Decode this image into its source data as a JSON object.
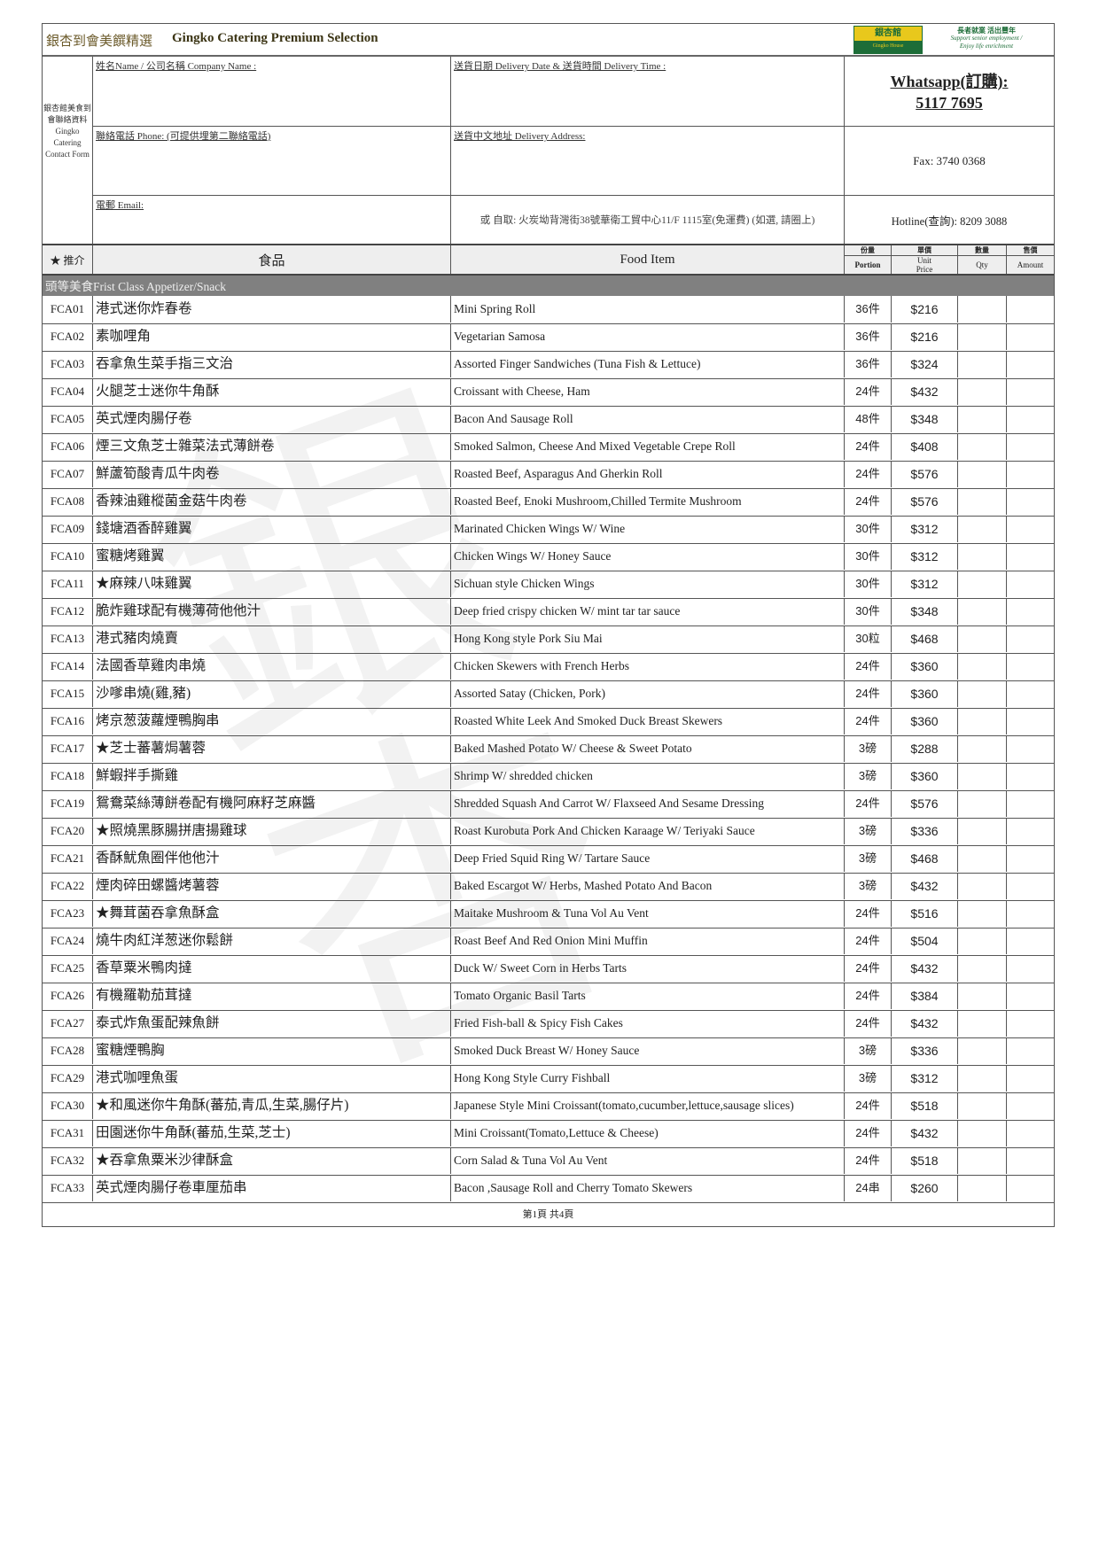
{
  "header": {
    "title_zh": "銀杏到會美饌精選",
    "title_en": "Gingko Catering Premium Selection",
    "logo_text": "銀杏館",
    "logo_subtext": "Gingko House",
    "slogan_zh": "長者就業 活出豐年",
    "slogan_en": "Support senior employment / Enjoy life enrichment"
  },
  "contact_form": {
    "side_label": "銀杏館美食到會聯絡資料 Gingko Catering Contact Form",
    "name_label": "姓名Name / 公司名稱 Company Name :",
    "delivery_date_label": "送貨日期 Delivery Date & 送貨時間  Delivery Time :",
    "whatsapp_label": "Whatsapp(訂購):",
    "whatsapp_number": "5117 7695",
    "phone_label": "聯絡電話 Phone: (可提供埋第二聯絡電話)",
    "address_label": "送貨中文地址 Delivery Address:",
    "fax": "Fax: 3740 0368",
    "email_label": "電郵 Email:",
    "pickup_note": "或 自取: 火炭坳背灣街38號華衛工貿中心11/F 1115室(免運費) (如選, 請圈上)",
    "hotline": "Hotline(查詢): 8209 3088"
  },
  "columns": {
    "recommend": "★ 推介",
    "food_zh": "食品",
    "food_en": "Food Item",
    "portion_zh": "份量",
    "portion_en": "Portion",
    "price_zh": "單價",
    "price_en": "Unit Price",
    "qty_zh": "數量",
    "qty_en": "Qty",
    "amount_zh": "售價",
    "amount_en": "Amount"
  },
  "category": "頭等美食Frist Class Appetizer/Snack",
  "items": [
    {
      "code": "FCA01",
      "zh": "港式迷你炸春卷",
      "en": "Mini Spring Roll",
      "portion": "36件",
      "price": "$216"
    },
    {
      "code": "FCA02",
      "zh": "素咖哩角",
      "en": "Vegetarian Samosa",
      "portion": "36件",
      "price": "$216"
    },
    {
      "code": "FCA03",
      "zh": "吞拿魚生菜手指三文治",
      "en": "Assorted Finger Sandwiches (Tuna Fish & Lettuce)",
      "portion": "36件",
      "price": "$324"
    },
    {
      "code": "FCA04",
      "zh": "火腿芝士迷你牛角酥",
      "en": "Croissant with Cheese, Ham",
      "portion": "24件",
      "price": "$432"
    },
    {
      "code": "FCA05",
      "zh": "英式煙肉腸仔卷",
      "en": "Bacon And Sausage Roll",
      "portion": "48件",
      "price": "$348"
    },
    {
      "code": "FCA06",
      "zh": "煙三文魚芝士雜菜法式薄餅卷",
      "en": "Smoked Salmon, Cheese And Mixed Vegetable Crepe Roll",
      "portion": "24件",
      "price": "$408"
    },
    {
      "code": "FCA07",
      "zh": "鮮蘆筍酸青瓜牛肉卷",
      "en": "Roasted Beef, Asparagus And Gherkin Roll",
      "portion": "24件",
      "price": "$576"
    },
    {
      "code": "FCA08",
      "zh": "香辣油雞樅菌金菇牛肉卷",
      "en": "Roasted Beef, Enoki Mushroom,Chilled Termite Mushroom",
      "portion": "24件",
      "price": "$576"
    },
    {
      "code": "FCA09",
      "zh": "錢塘酒香醉雞翼",
      "en": "Marinated Chicken Wings W/ Wine",
      "portion": "30件",
      "price": "$312"
    },
    {
      "code": "FCA10",
      "zh": "蜜糖烤雞翼",
      "en": "Chicken Wings W/ Honey Sauce",
      "portion": "30件",
      "price": "$312"
    },
    {
      "code": "FCA11",
      "zh": "★麻辣八味雞翼",
      "en": "Sichuan style Chicken Wings",
      "portion": "30件",
      "price": "$312"
    },
    {
      "code": "FCA12",
      "zh": "脆炸雞球配有機薄荷他他汁",
      "en": "Deep fried crispy chicken W/ mint tar tar sauce",
      "portion": "30件",
      "price": "$348"
    },
    {
      "code": "FCA13",
      "zh": "港式豬肉燒賣",
      "en": "Hong Kong style Pork Siu Mai",
      "portion": "30粒",
      "price": "$468"
    },
    {
      "code": "FCA14",
      "zh": "法國香草雞肉串燒",
      "en": "Chicken Skewers with French Herbs",
      "portion": "24件",
      "price": "$360"
    },
    {
      "code": "FCA15",
      "zh": "沙嗲串燒(雞,豬)",
      "en": "Assorted Satay (Chicken, Pork)",
      "portion": "24件",
      "price": "$360"
    },
    {
      "code": "FCA16",
      "zh": "烤京葱菠蘿煙鴨胸串",
      "en": "Roasted White Leek And Smoked Duck Breast Skewers",
      "portion": "24件",
      "price": "$360"
    },
    {
      "code": "FCA17",
      "zh": "★芝士蕃薯焗薯蓉",
      "en": "Baked Mashed Potato W/ Cheese & Sweet Potato",
      "portion": "3磅",
      "price": "$288"
    },
    {
      "code": "FCA18",
      "zh": "鮮蝦拌手撕雞",
      "en": "Shrimp W/ shredded chicken",
      "portion": "3磅",
      "price": "$360"
    },
    {
      "code": "FCA19",
      "zh": "鴛鴦菜絲薄餅卷配有機阿麻籽芝麻醬",
      "en": "Shredded Squash And Carrot W/ Flaxseed And Sesame Dressing",
      "portion": "24件",
      "price": "$576"
    },
    {
      "code": "FCA20",
      "zh": "★照燒黑豚腸拼唐揚雞球",
      "en": "Roast Kurobuta Pork And Chicken Karaage W/ Teriyaki Sauce",
      "portion": "3磅",
      "price": "$336"
    },
    {
      "code": "FCA21",
      "zh": "香酥魷魚圈伴他他汁",
      "en": "Deep Fried Squid Ring W/ Tartare Sauce",
      "portion": "3磅",
      "price": "$468"
    },
    {
      "code": "FCA22",
      "zh": "煙肉碎田螺醬烤薯蓉",
      "en": "Baked Escargot W/ Herbs, Mashed Potato And Bacon",
      "portion": "3磅",
      "price": "$432"
    },
    {
      "code": "FCA23",
      "zh": "★舞茸菌吞拿魚酥盒",
      "en": "Maitake Mushroom & Tuna Vol Au Vent",
      "portion": "24件",
      "price": "$516"
    },
    {
      "code": "FCA24",
      "zh": "燒牛肉紅洋葱迷你鬆餅",
      "en": "Roast Beef And Red Onion Mini Muffin",
      "portion": "24件",
      "price": "$504"
    },
    {
      "code": "FCA25",
      "zh": "香草粟米鴨肉撻",
      "en": "Duck W/ Sweet Corn in Herbs Tarts",
      "portion": "24件",
      "price": "$432"
    },
    {
      "code": "FCA26",
      "zh": "有機羅勒茄茸撻",
      "en": "Tomato Organic Basil Tarts",
      "portion": "24件",
      "price": "$384"
    },
    {
      "code": "FCA27",
      "zh": "泰式炸魚蛋配辣魚餅",
      "en": "Fried Fish-ball & Spicy Fish Cakes",
      "portion": "24件",
      "price": "$432"
    },
    {
      "code": "FCA28",
      "zh": "蜜糖煙鴨胸",
      "en": "Smoked Duck Breast W/ Honey Sauce",
      "portion": "3磅",
      "price": "$336"
    },
    {
      "code": "FCA29",
      "zh": "港式咖哩魚蛋",
      "en": "Hong Kong Style Curry Fishball",
      "portion": "3磅",
      "price": "$312"
    },
    {
      "code": "FCA30",
      "zh": "★和風迷你牛角酥(蕃茄,青瓜,生菜,腸仔片)",
      "en": "Japanese Style Mini Croissant(tomato,cucumber,lettuce,sausage slices)",
      "portion": "24件",
      "price": "$518"
    },
    {
      "code": "FCA31",
      "zh": "田園迷你牛角酥(蕃茄,生菜,芝士)",
      "en": "Mini Croissant(Tomato,Lettuce & Cheese)",
      "portion": "24件",
      "price": "$432"
    },
    {
      "code": "FCA32",
      "zh": "★吞拿魚粟米沙律酥盒",
      "en": "Corn Salad & Tuna Vol Au Vent",
      "portion": "24件",
      "price": "$518"
    },
    {
      "code": "FCA33",
      "zh": "英式煙肉腸仔卷車厘茄串",
      "en": "Bacon ,Sausage Roll and Cherry Tomato Skewers",
      "portion": "24串",
      "price": "$260"
    }
  ],
  "footer": {
    "page_info": "第1頁 共4頁"
  },
  "watermark": "銀杏到會"
}
